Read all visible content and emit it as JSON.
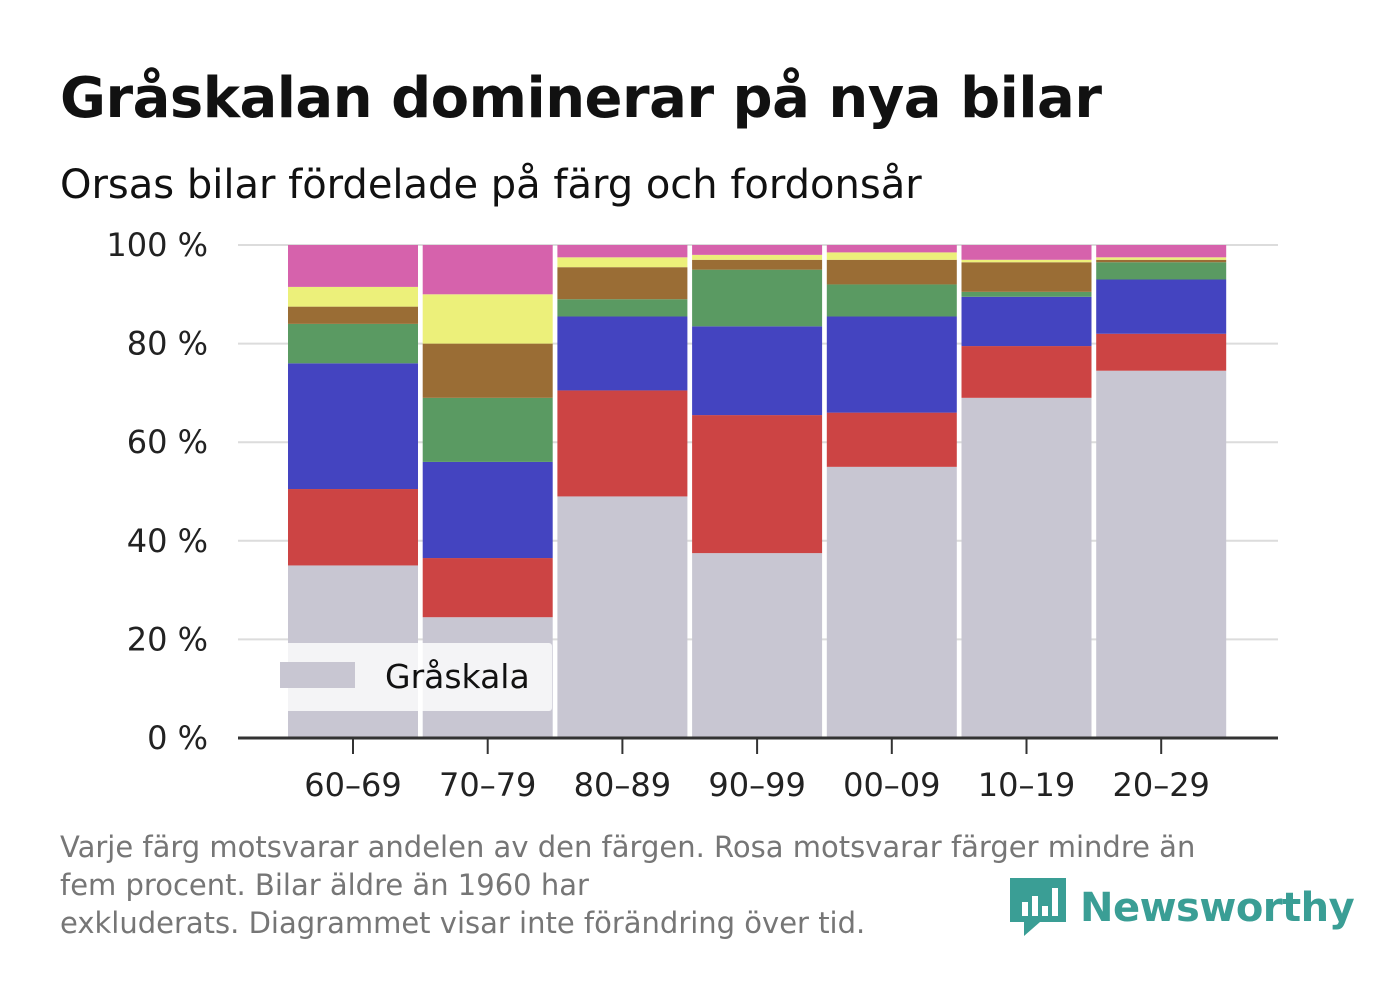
{
  "header": {
    "title": "Gråskalan dominerar på nya bilar",
    "subtitle": "Orsas bilar fördelade på färg och fordonsår"
  },
  "chart_data": {
    "type": "bar",
    "stacked": true,
    "categories": [
      "60–69",
      "70–79",
      "80–89",
      "90–99",
      "00–09",
      "10–19",
      "20–29"
    ],
    "y_ticks": [
      "0 %",
      "20 %",
      "40 %",
      "60 %",
      "80 %",
      "100 %"
    ],
    "ylim": [
      0,
      100
    ],
    "grid": true,
    "series": [
      {
        "color": "#c8c6d2",
        "values": [
          35,
          24.5,
          49,
          37.5,
          55,
          69,
          74.5
        ]
      },
      {
        "color": "#cc4444",
        "values": [
          15.5,
          12,
          21.5,
          28,
          11,
          10.5,
          7.5
        ]
      },
      {
        "color": "#4444c0",
        "values": [
          25.5,
          19.5,
          15,
          18,
          19.5,
          10,
          11
        ]
      },
      {
        "color": "#5a9a62",
        "values": [
          8,
          13,
          3.5,
          11.5,
          6.5,
          1,
          3.5
        ]
      },
      {
        "color": "#9a6d35",
        "values": [
          3.5,
          11,
          6.5,
          2,
          5,
          6,
          0.5
        ]
      },
      {
        "color": "#ecf07a",
        "values": [
          4,
          10,
          2,
          1,
          1.5,
          0.5,
          0.5
        ]
      },
      {
        "color": "#d662ac",
        "values": [
          8.5,
          10,
          2.5,
          2,
          1.5,
          3,
          2.5
        ]
      }
    ],
    "legend": {
      "label": "Gråskala",
      "color": "#c8c6d2",
      "position": "bottom-left"
    }
  },
  "footnote": {
    "line1": "Varje färg motsvarar andelen av den färgen. Rosa motsvarar färger mindre än",
    "line2": "fem procent. Bilar äldre än 1960 har",
    "line3": "exkluderats. Diagrammet visar inte förändring över tid."
  },
  "brand": {
    "name": "Newsworthy",
    "icon": "newsworthy-logo-icon",
    "color": "#3a9e95"
  }
}
